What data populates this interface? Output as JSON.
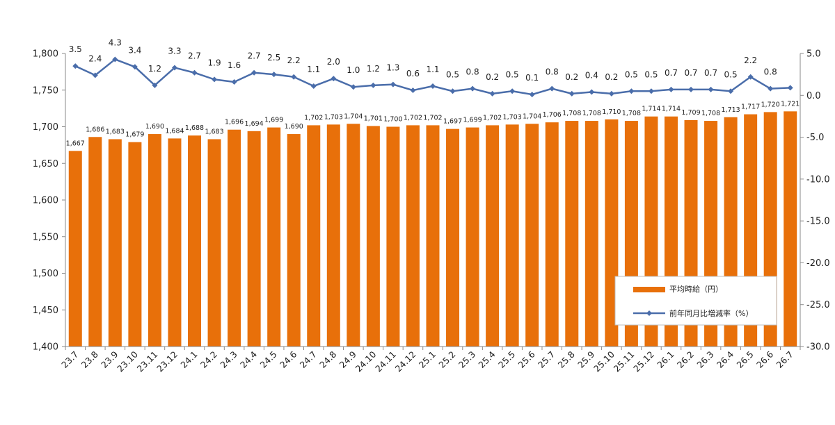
{
  "chart_data": {
    "type": "bar",
    "categories": [
      "23.7",
      "23.8",
      "23.9",
      "23.10",
      "23.11",
      "23.12",
      "24.1",
      "24.2",
      "24.3",
      "24.4",
      "24.5",
      "24.6",
      "24.7",
      "24.8",
      "24.9",
      "24.10",
      "24.11",
      "24.12",
      "25.1",
      "25.2",
      "25.3",
      "25.4",
      "25.5",
      "25.6",
      "25.7",
      "25.8",
      "25.9",
      "25.10",
      "25.11",
      "25.12",
      "26.1",
      "26.2",
      "26.3",
      "26.4",
      "26.5",
      "26.6",
      "26.7"
    ],
    "series": [
      {
        "name": "平均時給（円）",
        "type": "bar",
        "axis": "left",
        "color": "#E8700A",
        "values": [
          1667,
          1686,
          1683,
          1679,
          1690,
          1684,
          1688,
          1683,
          1696,
          1694,
          1699,
          1690,
          1702,
          1703,
          1704,
          1701,
          1700,
          1702,
          1702,
          1697,
          1699,
          1702,
          1703,
          1704,
          1706,
          1708,
          1708,
          1710,
          1708,
          1714,
          1714,
          1709,
          1708,
          1713,
          1717,
          1720,
          1721
        ],
        "labels": [
          "1,667",
          "1,686",
          "1,683",
          "1,679",
          "1,690",
          "1,684",
          "1,688",
          "1,683",
          "1,696",
          "1,694",
          "1,699",
          "1,690",
          "1,702",
          "1,703",
          "1,704",
          "1,701",
          "1,700",
          "1,702",
          "1,702",
          "1,697",
          "1,699",
          "1,702",
          "1,703",
          "1,704",
          "1,706",
          "1,708",
          "1,708",
          "1,710",
          "1,708",
          "1,714",
          "1,714",
          "1,709",
          "1,708",
          "1,713",
          "1,717",
          "1,720",
          "1,721"
        ]
      },
      {
        "name": "前年同月比増減率（%）",
        "type": "line",
        "axis": "right",
        "color": "#4A6DAA",
        "values": [
          3.5,
          2.4,
          4.3,
          3.4,
          1.2,
          3.3,
          2.7,
          1.9,
          1.6,
          2.7,
          2.5,
          2.2,
          1.1,
          2.0,
          1.0,
          1.2,
          1.3,
          0.6,
          1.1,
          0.5,
          0.8,
          0.2,
          0.5,
          0.1,
          0.8,
          0.2,
          0.4,
          0.2,
          0.5,
          0.5,
          0.7,
          0.7,
          0.7,
          0.5,
          2.2,
          0.8,
          0.9
        ],
        "labels": [
          "3.5",
          "2.4",
          "4.3",
          "3.4",
          "1.2",
          "3.3",
          "2.7",
          "1.9",
          "1.6",
          "2.7",
          "2.5",
          "2.2",
          "1.1",
          "2.0",
          "1.0",
          "1.2",
          "1.3",
          "0.6",
          "1.1",
          "0.5",
          "0.8",
          "0.2",
          "0.5",
          "0.1",
          "0.8",
          "0.2",
          "0.4",
          "0.2",
          "0.5",
          "0.5",
          "0.7",
          "0.7",
          "0.7",
          "0.5",
          "2.2",
          "0.8",
          ""
        ]
      }
    ],
    "y_left": {
      "ylim": [
        1400,
        1800
      ],
      "ticks": [
        1400,
        1450,
        1500,
        1550,
        1600,
        1650,
        1700,
        1750,
        1800
      ],
      "tick_labels": [
        "1,400",
        "1,450",
        "1,500",
        "1,550",
        "1,600",
        "1,650",
        "1,700",
        "1,750",
        "1,800"
      ]
    },
    "y_right": {
      "ylim": [
        -30,
        5
      ],
      "ticks": [
        -30,
        -25,
        -20,
        -15,
        -10,
        -5,
        0,
        5
      ],
      "tick_labels": [
        "-30.0",
        "-25.0",
        "-20.0",
        "-15.0",
        "-10.0",
        "-5.0",
        "0.0",
        "5.0"
      ]
    },
    "legend_position": "bottom-right",
    "grid": false
  }
}
